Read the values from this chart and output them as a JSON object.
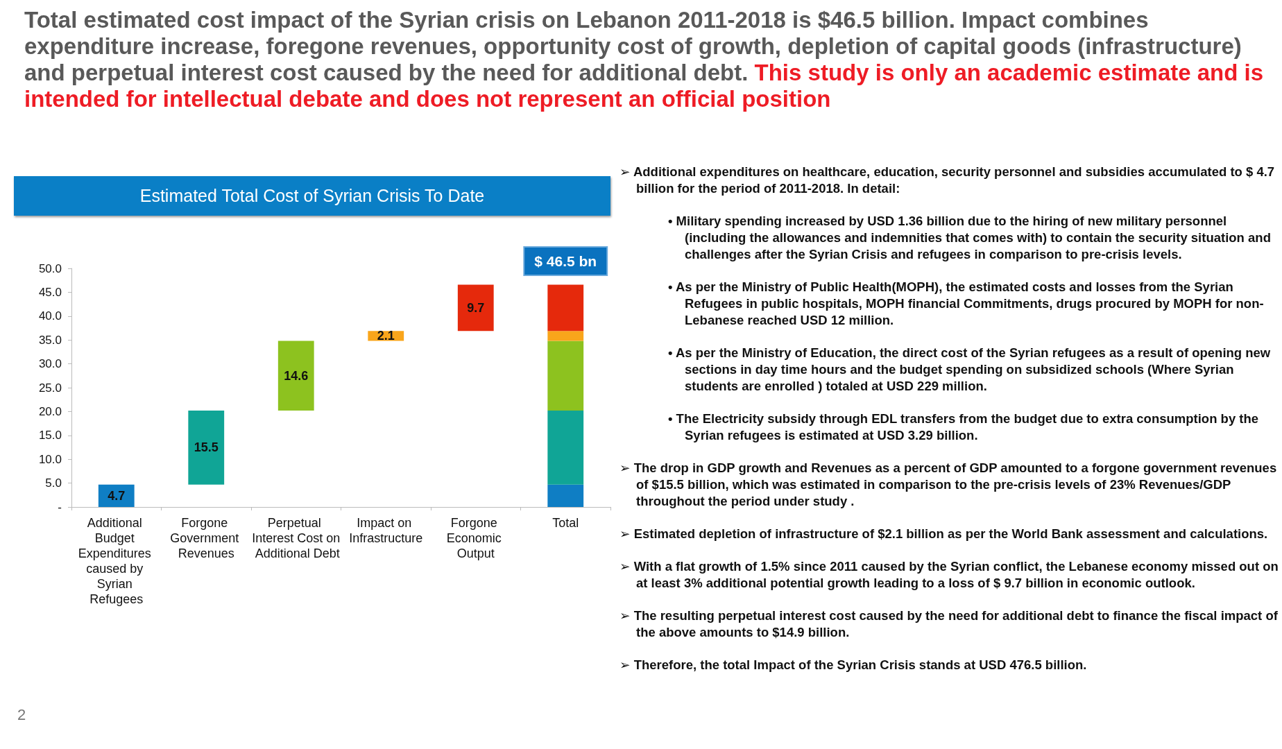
{
  "chart_data": {
    "type": "bar",
    "title": "Estimated Total Cost of Syrian Crisis To Date",
    "categories": [
      "Additional Budget Expenditures caused by Syrian Refugees",
      "Forgone Government Revenues",
      "Perpetual Interest Cost on Additional Debt",
      "Impact on Infrastructure",
      "Forgone Economic Output",
      "Total"
    ],
    "series": [
      {
        "color": "#0f7ec4",
        "values": [
          4.7,
          null,
          null,
          null,
          null,
          4.7
        ],
        "base": [
          0,
          null,
          null,
          null,
          null,
          0
        ],
        "value_labels": [
          "4.7",
          null,
          null,
          null,
          null,
          null
        ]
      },
      {
        "color": "#10a596",
        "values": [
          null,
          15.5,
          null,
          null,
          null,
          15.5
        ],
        "base": [
          null,
          4.7,
          null,
          null,
          null,
          4.7
        ],
        "value_labels": [
          null,
          "15.5",
          null,
          null,
          null,
          null
        ]
      },
      {
        "color": "#8dc21f",
        "values": [
          null,
          null,
          14.6,
          null,
          null,
          14.6
        ],
        "base": [
          null,
          null,
          20.2,
          null,
          null,
          20.2
        ],
        "value_labels": [
          null,
          null,
          "14.6",
          null,
          null,
          null
        ]
      },
      {
        "color": "#f9a51b",
        "values": [
          null,
          null,
          null,
          2.1,
          null,
          2.1
        ],
        "base": [
          null,
          null,
          null,
          34.8,
          null,
          34.8
        ],
        "value_labels": [
          null,
          null,
          null,
          "2.1",
          null,
          null
        ]
      },
      {
        "color": "#e5290c",
        "values": [
          null,
          null,
          null,
          null,
          9.7,
          9.7
        ],
        "base": [
          null,
          null,
          null,
          null,
          36.9,
          36.9
        ],
        "value_labels": [
          null,
          null,
          null,
          null,
          "9.7",
          null
        ]
      }
    ],
    "ylim": [
      0,
      50
    ],
    "yticks": [
      {
        "value": 0,
        "label": "-"
      },
      {
        "value": 5,
        "label": "5.0"
      },
      {
        "value": 10,
        "label": "10.0"
      },
      {
        "value": 15,
        "label": "15.0"
      },
      {
        "value": 20,
        "label": "20.0"
      },
      {
        "value": 25,
        "label": "25.0"
      },
      {
        "value": 30,
        "label": "30.0"
      },
      {
        "value": 35,
        "label": "35.0"
      },
      {
        "value": 40,
        "label": "40.0"
      },
      {
        "value": 45,
        "label": "45.0"
      },
      {
        "value": 50,
        "label": "50.0"
      }
    ],
    "grid": false,
    "annotations": [
      "Total estimated cost impact of the Syrian crisis on Lebanon  2011-2018 is $46.5 billion. Impact combines expenditure increase, foregone revenues, opportunity cost of growth, depletion of capital goods (infrastructure) and perpetual interest cost caused by the need for additional debt.",
      "This study is only an academic estimate and is intended for intellectual debate and does not represent an official position",
      {
        "text": "$ 46.5 bn",
        "x": "Total",
        "y": 46.5
      },
      "➢ Additional expenditures on healthcare, education, security personnel and subsidies accumulated to $ 4.7 billion for the period of 2011-2018. In detail:",
      "• Military spending increased by USD 1.36 billion due to the hiring of new military personnel (including the allowances and indemnities that comes with) to contain the security situation and challenges after the Syrian Crisis and refugees in comparison to pre-crisis levels.",
      "• As per the Ministry of Public Health(MOPH), the estimated costs and losses from the Syrian Refugees in public hospitals, MOPH financial Commitments, drugs procured by MOPH for non-Lebanese reached USD 12 million.",
      "• As per the Ministry of Education, the direct cost of the Syrian refugees as a result of opening new sections in day time hours and the budget spending on subsidized schools (Where Syrian students are enrolled ) totaled at USD 229 million.",
      "• The Electricity subsidy through EDL transfers from the budget due to extra consumption by the Syrian refugees is estimated at USD 3.29 billion.",
      "➢ The drop in GDP growth and Revenues as a percent of GDP amounted to a forgone government revenues of $15.5 billion, which was estimated in comparison to the pre-crisis levels of 23% Revenues/GDP throughout the period under study .",
      "➢ Estimated depletion of infrastructure of $2.1 billion as per the World Bank assessment and calculations.",
      "➢ With a flat growth of 1.5% since 2011 caused by the Syrian conflict, the Lebanese economy missed out on at least 3% additional potential growth leading to a loss of $ 9.7 billion in economic outlook.",
      "➢ The resulting perpetual interest cost caused by the need for additional debt to finance the fiscal impact of the above amounts to $14.9 billion.",
      "➢ Therefore, the total Impact of the Syrian Crisis stands at USD 476.5 billion.",
      "2"
    ]
  }
}
